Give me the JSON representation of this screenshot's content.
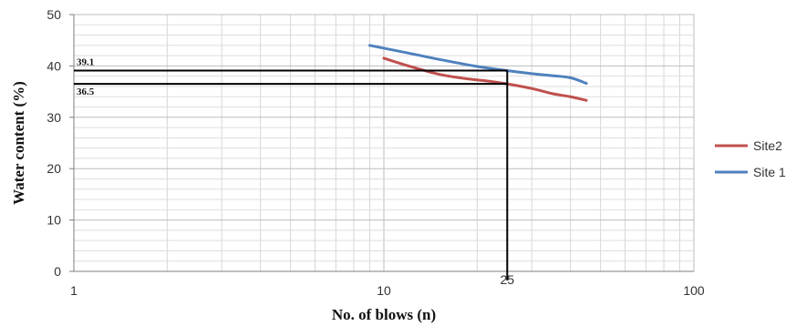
{
  "chart_data": {
    "type": "line",
    "title": "",
    "xlabel": "No. of blows (n)",
    "ylabel": "Water content (%)",
    "x_scale": "log",
    "xlim": [
      1,
      100
    ],
    "ylim": [
      0,
      50
    ],
    "x_ticks": [
      "1",
      "10",
      "100"
    ],
    "y_ticks": [
      "0",
      "10",
      "20",
      "30",
      "40",
      "50"
    ],
    "grid": true,
    "legend_position": "right",
    "series": [
      {
        "name": "Site2",
        "color": "#c0504d",
        "x": [
          10,
          12,
          15,
          18,
          22,
          25,
          30,
          35,
          40,
          45
        ],
        "y": [
          41.5,
          40.0,
          38.4,
          37.6,
          37.0,
          36.5,
          35.6,
          34.6,
          34.0,
          33.3
        ]
      },
      {
        "name": "Site 1",
        "color": "#4f81bd",
        "x": [
          9,
          12,
          15,
          20,
          25,
          30,
          35,
          40,
          45
        ],
        "y": [
          44.0,
          42.5,
          41.3,
          39.9,
          39.1,
          38.5,
          38.1,
          37.7,
          36.6
        ]
      }
    ],
    "reference": {
      "x": 25,
      "x_label": "25",
      "y_values": [
        39.1,
        36.5
      ],
      "y_labels": [
        "39.1",
        "36.5"
      ]
    }
  }
}
